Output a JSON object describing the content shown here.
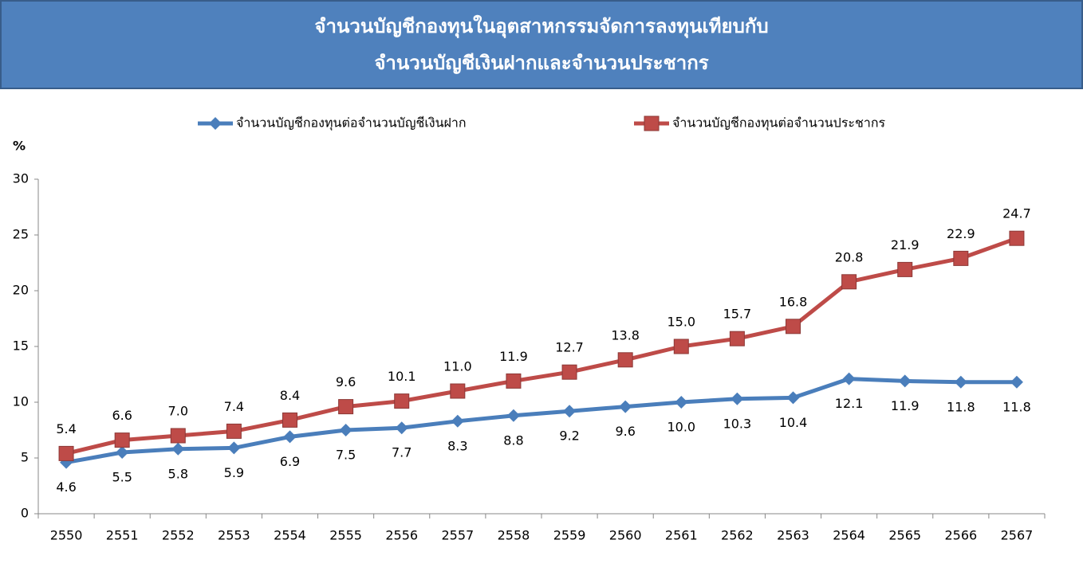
{
  "chart_data": {
    "type": "line",
    "title": [
      "จำนวนบัญชีกองทุนในอุตสาหกรรมจัดการลงทุนเทียบกับ",
      "จำนวนบัญชีเงินฝากและจำนวนประชากร"
    ],
    "y_label": "%",
    "categories": [
      "2550",
      "2551",
      "2552",
      "2553",
      "2554",
      "2555",
      "2556",
      "2557",
      "2558",
      "2559",
      "2560",
      "2561",
      "2562",
      "2563",
      "2564",
      "2565",
      "2566",
      "2567"
    ],
    "series": [
      {
        "name": "จำนวนบัญชีกองทุนต่อจำนวนบัญชีเงินฝาก",
        "color": "#4a7ebb",
        "marker": "diamond",
        "values": [
          4.6,
          5.5,
          5.8,
          5.9,
          6.9,
          7.5,
          7.7,
          8.3,
          8.8,
          9.2,
          9.6,
          10.0,
          10.3,
          10.4,
          12.1,
          11.9,
          11.8,
          11.8
        ],
        "value_labels": [
          "4.6",
          "5.5",
          "5.8",
          "5.9",
          "6.9",
          "7.5",
          "7.7",
          "8.3",
          "8.8",
          "9.2",
          "9.6",
          "10.0",
          "10.3",
          "10.4",
          "12.1",
          "11.9",
          "11.8",
          "11.8"
        ]
      },
      {
        "name": "จำนวนบัญชีกองทุนต่อจำนวนประชากร",
        "color": "#be4b48",
        "marker": "square",
        "values": [
          5.4,
          6.6,
          7.0,
          7.4,
          8.4,
          9.6,
          10.1,
          11.0,
          11.9,
          12.7,
          13.8,
          15.0,
          15.7,
          16.8,
          20.8,
          21.9,
          22.9,
          24.7
        ],
        "value_labels": [
          "5.4",
          "6.6",
          "7.0",
          "7.4",
          "8.4",
          "9.6",
          "10.1",
          "11.0",
          "11.9",
          "12.7",
          "13.8",
          "15.0",
          "15.7",
          "16.8",
          "20.8",
          "21.9",
          "22.9",
          "24.7"
        ]
      }
    ],
    "ylim": [
      0,
      30
    ],
    "yticks": [
      0,
      5,
      10,
      15,
      20,
      25,
      30
    ]
  }
}
